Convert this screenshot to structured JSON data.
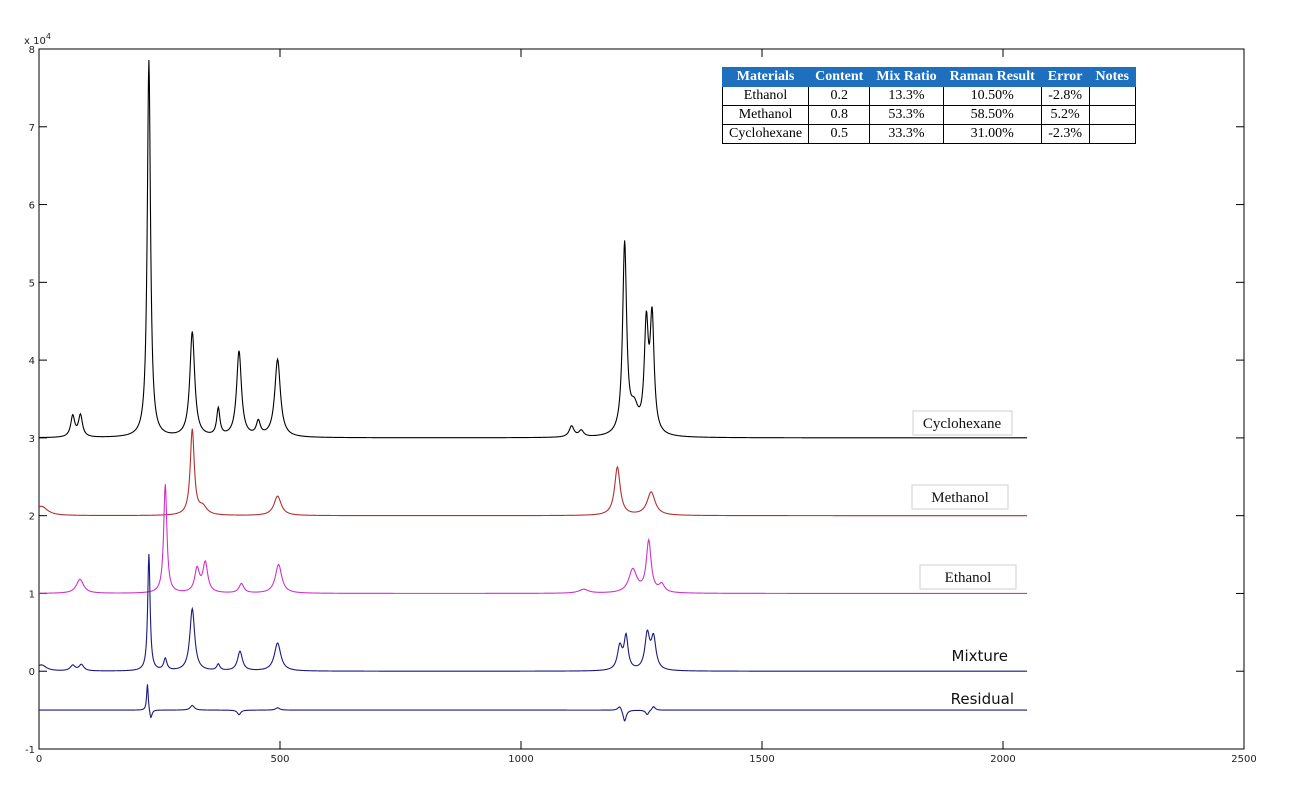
{
  "chart_data": {
    "type": "line",
    "title": "",
    "xlabel": "",
    "ylabel": "",
    "xlim": [
      0,
      2500
    ],
    "ylim": [
      -1,
      8
    ],
    "y_exponent_label": "x 10",
    "y_exponent_power": "4",
    "grid": false,
    "x_ticks": [
      0,
      500,
      1000,
      1500,
      2000,
      2500
    ],
    "y_ticks": [
      -1,
      0,
      1,
      2,
      3,
      4,
      5,
      6,
      7,
      8
    ],
    "series": [
      {
        "name": "Cyclohexane",
        "color": "#000000",
        "baseline": 3.0,
        "x_end": 2050,
        "peaks": [
          {
            "x": 70,
            "h": 0.27,
            "w": 5
          },
          {
            "x": 86,
            "h": 0.28,
            "w": 5
          },
          {
            "x": 228,
            "h": 4.85,
            "w": 4
          },
          {
            "x": 318,
            "h": 1.35,
            "w": 6
          },
          {
            "x": 372,
            "h": 0.35,
            "w": 4
          },
          {
            "x": 415,
            "h": 1.1,
            "w": 6
          },
          {
            "x": 455,
            "h": 0.18,
            "w": 5
          },
          {
            "x": 495,
            "h": 1.0,
            "w": 7
          },
          {
            "x": 1105,
            "h": 0.14,
            "w": 6
          },
          {
            "x": 1125,
            "h": 0.08,
            "w": 6
          },
          {
            "x": 1215,
            "h": 2.45,
            "w": 5
          },
          {
            "x": 1235,
            "h": 0.3,
            "w": 10
          },
          {
            "x": 1260,
            "h": 1.35,
            "w": 5
          },
          {
            "x": 1272,
            "h": 1.45,
            "w": 5
          }
        ]
      },
      {
        "name": "Methanol",
        "color": "#b03030",
        "baseline": 2.0,
        "x_end": 2050,
        "peaks": [
          {
            "x": 5,
            "h": 0.12,
            "w": 15
          },
          {
            "x": 318,
            "h": 1.1,
            "w": 5
          },
          {
            "x": 340,
            "h": 0.1,
            "w": 10
          },
          {
            "x": 495,
            "h": 0.25,
            "w": 9
          },
          {
            "x": 1200,
            "h": 0.62,
            "w": 7
          },
          {
            "x": 1270,
            "h": 0.3,
            "w": 10
          }
        ]
      },
      {
        "name": "Ethanol",
        "color": "#cc33cc",
        "baseline": 1.0,
        "x_end": 2050,
        "peaks": [
          {
            "x": 85,
            "h": 0.18,
            "w": 9
          },
          {
            "x": 262,
            "h": 1.4,
            "w": 4
          },
          {
            "x": 328,
            "h": 0.3,
            "w": 6
          },
          {
            "x": 345,
            "h": 0.38,
            "w": 6
          },
          {
            "x": 420,
            "h": 0.12,
            "w": 6
          },
          {
            "x": 497,
            "h": 0.37,
            "w": 8
          },
          {
            "x": 1130,
            "h": 0.05,
            "w": 12
          },
          {
            "x": 1232,
            "h": 0.3,
            "w": 10
          },
          {
            "x": 1265,
            "h": 0.66,
            "w": 6
          },
          {
            "x": 1292,
            "h": 0.1,
            "w": 7
          }
        ]
      },
      {
        "name": "Mixture",
        "color": "#1a1a80",
        "baseline": 0.0,
        "x_end": 2050,
        "peaks": [
          {
            "x": 5,
            "h": 0.08,
            "w": 12
          },
          {
            "x": 70,
            "h": 0.07,
            "w": 6
          },
          {
            "x": 88,
            "h": 0.08,
            "w": 6
          },
          {
            "x": 228,
            "h": 1.5,
            "w": 3
          },
          {
            "x": 262,
            "h": 0.15,
            "w": 4
          },
          {
            "x": 318,
            "h": 0.8,
            "w": 6
          },
          {
            "x": 372,
            "h": 0.08,
            "w": 4
          },
          {
            "x": 417,
            "h": 0.25,
            "w": 6
          },
          {
            "x": 495,
            "h": 0.36,
            "w": 8
          },
          {
            "x": 1205,
            "h": 0.3,
            "w": 6
          },
          {
            "x": 1218,
            "h": 0.42,
            "w": 5
          },
          {
            "x": 1262,
            "h": 0.45,
            "w": 6
          },
          {
            "x": 1275,
            "h": 0.4,
            "w": 6
          }
        ]
      },
      {
        "name": "Residual",
        "color": "#1a1a80",
        "baseline": -0.5,
        "x_end": 2050,
        "peaks": [
          {
            "x": 225,
            "h": 0.35,
            "w": 2
          },
          {
            "x": 232,
            "h": -0.12,
            "w": 3
          },
          {
            "x": 318,
            "h": 0.06,
            "w": 5
          },
          {
            "x": 415,
            "h": -0.06,
            "w": 4
          },
          {
            "x": 495,
            "h": 0.03,
            "w": 5
          },
          {
            "x": 1205,
            "h": 0.06,
            "w": 5
          },
          {
            "x": 1215,
            "h": -0.15,
            "w": 4
          },
          {
            "x": 1262,
            "h": -0.06,
            "w": 4
          },
          {
            "x": 1275,
            "h": 0.05,
            "w": 4
          }
        ]
      }
    ]
  },
  "series_labels": {
    "cyclohexane": "Cyclohexane",
    "methanol": "Methanol",
    "ethanol": "Ethanol",
    "mixture": "Mixture",
    "residual": "Residual"
  },
  "table": {
    "headers": [
      "Materials",
      "Content",
      "Mix Ratio",
      "Raman Result",
      "Error",
      "Notes"
    ],
    "rows": [
      [
        "Ethanol",
        "0.2",
        "13.3%",
        "10.50%",
        "-2.8%",
        ""
      ],
      [
        "Methanol",
        "0.8",
        "53.3%",
        "58.50%",
        "5.2%",
        ""
      ],
      [
        "Cyclohexane",
        "0.5",
        "33.3%",
        "31.00%",
        "-2.3%",
        ""
      ]
    ]
  }
}
